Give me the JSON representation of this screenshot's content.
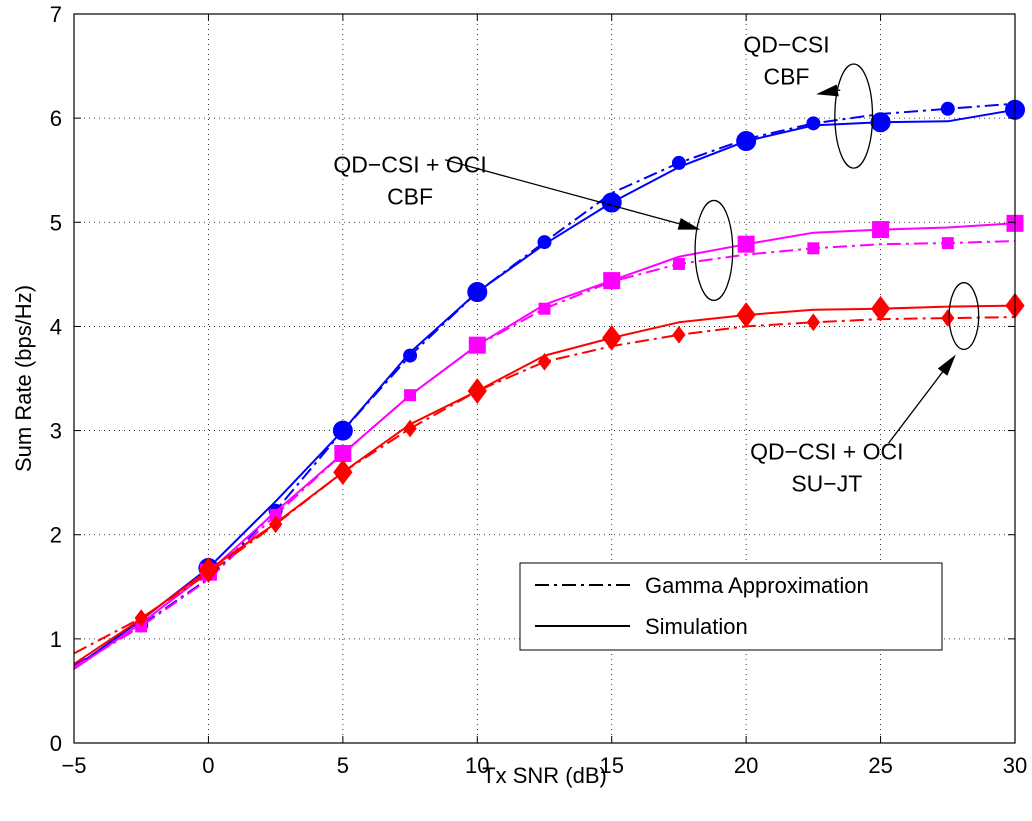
{
  "chart_data": {
    "type": "line",
    "xlabel": "Tx SNR (dB)",
    "ylabel": "Sum Rate (bps/Hz)",
    "xlim": [
      -5,
      30
    ],
    "ylim": [
      0,
      7
    ],
    "xticks": [
      -5,
      0,
      5,
      10,
      15,
      20,
      25,
      30
    ],
    "xtick_labels": [
      "−5",
      "0",
      "5",
      "10",
      "15",
      "20",
      "25",
      "30"
    ],
    "yticks": [
      0,
      1,
      2,
      3,
      4,
      5,
      6,
      7
    ],
    "ytick_labels": [
      "0",
      "1",
      "2",
      "3",
      "4",
      "5",
      "6",
      "7"
    ],
    "grid": true,
    "legend_position": "lower-right",
    "legend": [
      {
        "label": "Gamma Approximation",
        "style": "dashdot"
      },
      {
        "label": "Simulation",
        "style": "solid"
      }
    ],
    "series": [
      {
        "group": "QD-CSI CBF",
        "method": "Gamma Approximation",
        "color": "#0000ff",
        "line": "dashdot",
        "marker": "circle",
        "marker_size": "small",
        "x": [
          -5,
          -2.5,
          0,
          2.5,
          5,
          7.5,
          10,
          12.5,
          15,
          17.5,
          20,
          22.5,
          25,
          27.5,
          30
        ],
        "y": [
          0.74,
          1.13,
          1.58,
          2.23,
          3.0,
          3.72,
          4.33,
          4.81,
          5.28,
          5.57,
          5.8,
          5.95,
          6.04,
          6.09,
          6.14
        ],
        "markers_at": [
          -2.5,
          2.5,
          7.5,
          12.5,
          17.5,
          22.5,
          27.5
        ]
      },
      {
        "group": "QD-CSI CBF",
        "method": "Simulation",
        "color": "#0000ff",
        "line": "solid",
        "marker": "circle",
        "marker_size": "large",
        "x": [
          -5,
          -2.5,
          0,
          2.5,
          5,
          7.5,
          10,
          12.5,
          15,
          17.5,
          20,
          22.5,
          25,
          27.5,
          30
        ],
        "y": [
          0.72,
          1.18,
          1.68,
          2.32,
          3.0,
          3.75,
          4.33,
          4.79,
          5.19,
          5.53,
          5.78,
          5.93,
          5.96,
          5.97,
          6.08
        ],
        "markers_at": [
          0,
          5,
          10,
          15,
          20,
          25,
          30
        ]
      },
      {
        "group": "QD-CSI + OCI CBF",
        "method": "Gamma Approximation",
        "color": "#ff00ff",
        "line": "dashdot",
        "marker": "square",
        "marker_size": "small",
        "x": [
          -5,
          -2.5,
          0,
          2.5,
          5,
          7.5,
          10,
          12.5,
          15,
          17.5,
          20,
          22.5,
          25,
          27.5,
          30
        ],
        "y": [
          0.73,
          1.12,
          1.57,
          2.19,
          2.78,
          3.34,
          3.82,
          4.17,
          4.43,
          4.6,
          4.69,
          4.75,
          4.79,
          4.8,
          4.82
        ],
        "markers_at": [
          -2.5,
          2.5,
          7.5,
          12.5,
          17.5,
          22.5,
          27.5
        ]
      },
      {
        "group": "QD-CSI + OCI CBF",
        "method": "Simulation",
        "color": "#ff00ff",
        "line": "solid",
        "marker": "square",
        "marker_size": "large",
        "x": [
          -5,
          -2.5,
          0,
          2.5,
          5,
          7.5,
          10,
          12.5,
          15,
          17.5,
          20,
          22.5,
          25,
          27.5,
          30
        ],
        "y": [
          0.71,
          1.15,
          1.64,
          2.22,
          2.78,
          3.34,
          3.82,
          4.21,
          4.44,
          4.67,
          4.79,
          4.9,
          4.93,
          4.95,
          4.99
        ],
        "markers_at": [
          0,
          5,
          10,
          15,
          20,
          25,
          30
        ]
      },
      {
        "group": "QD-CSI + OCI SU-JT",
        "method": "Gamma Approximation",
        "color": "#ff0000",
        "line": "dashdot",
        "marker": "diamond",
        "marker_size": "small",
        "x": [
          -5,
          -2.5,
          0,
          2.5,
          5,
          7.5,
          10,
          12.5,
          15,
          17.5,
          20,
          22.5,
          25,
          27.5,
          30
        ],
        "y": [
          0.86,
          1.2,
          1.63,
          2.1,
          2.6,
          3.02,
          3.38,
          3.66,
          3.81,
          3.92,
          4.0,
          4.04,
          4.07,
          4.08,
          4.09
        ],
        "markers_at": [
          -2.5,
          2.5,
          7.5,
          12.5,
          17.5,
          22.5,
          27.5
        ]
      },
      {
        "group": "QD-CSI + OCI SU-JT",
        "method": "Simulation",
        "color": "#ff0000",
        "line": "solid",
        "marker": "diamond",
        "marker_size": "large",
        "x": [
          -5,
          -2.5,
          0,
          2.5,
          5,
          7.5,
          10,
          12.5,
          15,
          17.5,
          20,
          22.5,
          25,
          27.5,
          30
        ],
        "y": [
          0.76,
          1.19,
          1.66,
          2.11,
          2.6,
          3.06,
          3.38,
          3.72,
          3.89,
          4.04,
          4.11,
          4.16,
          4.17,
          4.19,
          4.2
        ],
        "markers_at": [
          0,
          5,
          10,
          15,
          20,
          25,
          30
        ]
      }
    ],
    "annotations": [
      {
        "lines": [
          "QD−CSI",
          "CBF"
        ],
        "text_at": [
          21.5,
          6.63
        ],
        "arrow_from": [
          23.5,
          6.27
        ],
        "arrow_to": [
          22.6,
          6.23
        ],
        "ellipse_at": [
          24.0,
          6.02
        ],
        "ellipse_size": [
          0.7,
          0.5
        ]
      },
      {
        "lines": [
          "QD−CSI + OCI",
          "CBF"
        ],
        "text_at": [
          7.5,
          5.48
        ],
        "arrow_from": [
          8.8,
          5.6
        ],
        "arrow_to": [
          18.3,
          4.93
        ],
        "ellipse_at": [
          18.8,
          4.73
        ],
        "ellipse_size": [
          0.7,
          0.48
        ]
      },
      {
        "lines": [
          "QD−CSI + OCI",
          "SU−JT"
        ],
        "text_at": [
          23.0,
          2.72
        ],
        "arrow_from": [
          25.3,
          2.88
        ],
        "arrow_to": [
          27.8,
          3.73
        ],
        "ellipse_at": [
          28.1,
          4.1
        ],
        "ellipse_size": [
          0.55,
          0.32
        ]
      }
    ]
  }
}
